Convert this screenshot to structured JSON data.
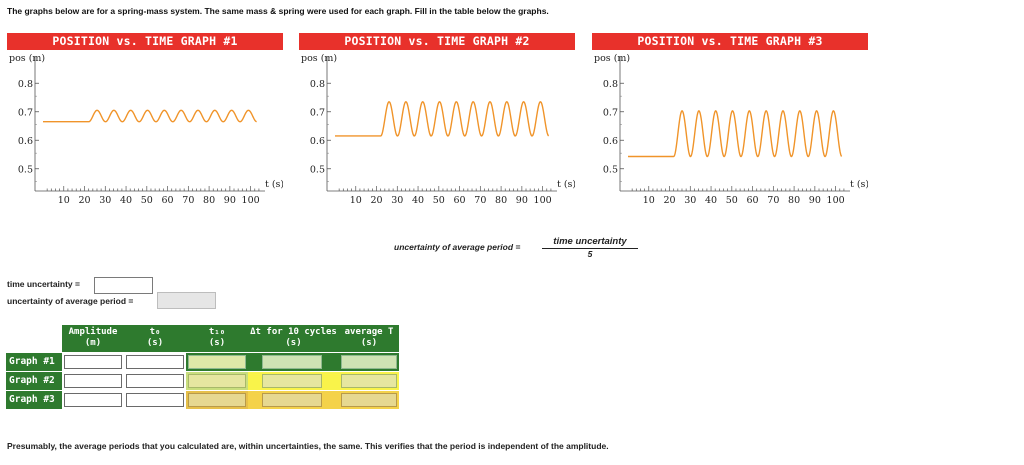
{
  "intro": "The graphs below are for a spring-mass system. The same mass & spring were used for each graph. Fill in the table below the graphs.",
  "graphs": [
    {
      "title": "POSITION vs. TIME GRAPH #1",
      "ylabel": "pos (m)",
      "xlabel": "t (s)",
      "baseline": 0.665,
      "start": 22,
      "amplitude": 0.02
    },
    {
      "title": "POSITION vs. TIME GRAPH #2",
      "ylabel": "pos (m)",
      "xlabel": "t (s)",
      "baseline": 0.615,
      "start": 22,
      "amplitude": 0.06
    },
    {
      "title": "POSITION vs. TIME GRAPH #3",
      "ylabel": "pos (m)",
      "xlabel": "t (s)",
      "baseline": 0.543,
      "start": 22,
      "amplitude": 0.08
    }
  ],
  "axes": {
    "x_ticks": [
      "10",
      "20",
      "30",
      "40",
      "50",
      "60",
      "70",
      "80",
      "90",
      "100"
    ],
    "y_ticks": [
      "0.8",
      "0.7",
      "0.6",
      "0.5"
    ],
    "xlim": [
      0,
      105
    ],
    "ylim": [
      0.45,
      0.85
    ],
    "period": 8.1,
    "cycles_shown": 10,
    "grid": false,
    "line_color": "#f0942a"
  },
  "formula": {
    "lhs": "uncertainty of average period =",
    "numerator": "time uncertainty",
    "denominator": "5"
  },
  "fields": {
    "time_uncertainty_label": "time uncertainty =",
    "avg_period_uncertainty_label": "uncertainty of average period =",
    "time_uncertainty_value": "",
    "avg_period_uncertainty_value": ""
  },
  "table": {
    "headers": {
      "amplitude": [
        "Amplitude",
        "(m)"
      ],
      "t0": [
        "t₀",
        "(s)"
      ],
      "t10": [
        "t₁₀",
        "(s)"
      ],
      "dt": [
        "Δt for 10 cycles",
        "(s)"
      ],
      "avgT": [
        "average T",
        "(s)"
      ]
    },
    "rows": [
      {
        "label": "Graph #1",
        "amplitude": "",
        "t0": "",
        "t10": "",
        "dt": "",
        "avgT": ""
      },
      {
        "label": "Graph #2",
        "amplitude": "",
        "t0": "",
        "t10": "",
        "dt": "",
        "avgT": ""
      },
      {
        "label": "Graph #3",
        "amplitude": "",
        "t0": "",
        "t10": "",
        "dt": "",
        "avgT": ""
      }
    ],
    "colors": {
      "header": "#2e7a2e",
      "computed": "#e6e6a0",
      "computed_border": "#8fb88f",
      "row_yellow": "#f9f34a"
    }
  },
  "footer": "Presumably, the average periods that you calculated are, within uncertainties, the same. This verifies that the period is independent of the amplitude."
}
